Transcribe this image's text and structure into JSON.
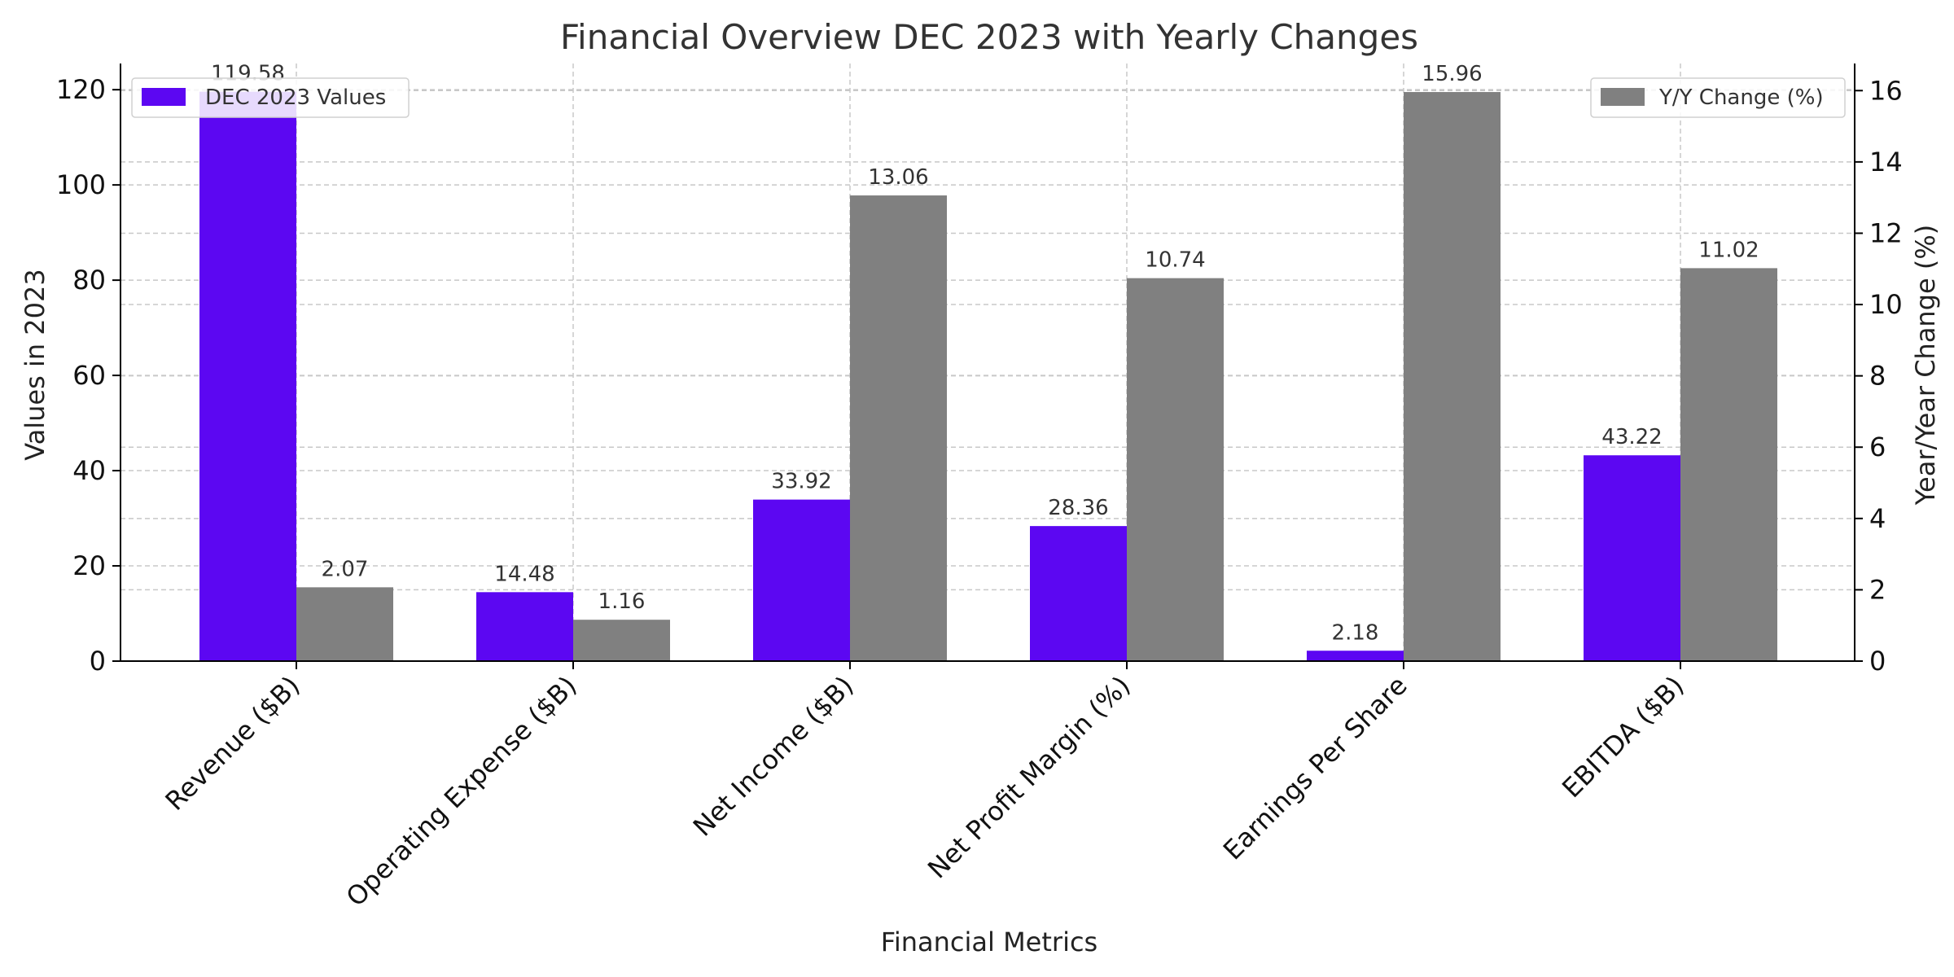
{
  "chart_data": {
    "type": "bar",
    "title": "Financial Overview DEC 2023 with Yearly Changes",
    "xlabel": "Financial Metrics",
    "ylabel_left": "Values in 2023",
    "ylabel_right": "Year/Year Change (%)",
    "categories": [
      "Revenue ($B)",
      "Operating Expense ($B)",
      "Net Income ($B)",
      "Net Profit Margin (%)",
      "Earnings Per Share",
      "EBITDA ($B)"
    ],
    "series": [
      {
        "name": "DEC 2023 Values",
        "axis": "left",
        "color": "#5c07f2",
        "values": [
          119.58,
          14.48,
          33.92,
          28.36,
          2.18,
          43.22
        ]
      },
      {
        "name": "Y/Y Change (%)",
        "axis": "right",
        "color": "#808080",
        "values": [
          2.07,
          1.16,
          13.06,
          10.74,
          15.96,
          11.02
        ]
      }
    ],
    "ylim_left": [
      0,
      125.5
    ],
    "ylim_right": [
      0,
      16.76
    ],
    "yticks_left": [
      0,
      20,
      40,
      60,
      80,
      100,
      120
    ],
    "yticks_right": [
      0,
      2,
      4,
      6,
      8,
      10,
      12,
      14,
      16
    ],
    "grid": true,
    "legend_left_placement": "top-left",
    "legend_right_placement": "top-right"
  }
}
